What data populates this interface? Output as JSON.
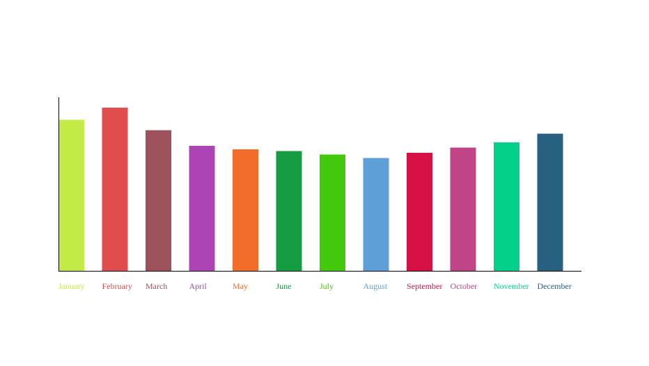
{
  "chart_data": {
    "type": "bar",
    "title": "",
    "xlabel": "",
    "ylabel": "",
    "categories": [
      "January",
      "February",
      "March",
      "April",
      "May",
      "June",
      "July",
      "August",
      "September",
      "October",
      "November",
      "December"
    ],
    "values": [
      87,
      94,
      81,
      72,
      70,
      69,
      67,
      65,
      68,
      71,
      74,
      79
    ],
    "colors": [
      "#c3eb47",
      "#df4e4d",
      "#9d525b",
      "#ac44b5",
      "#f06e2a",
      "#169c40",
      "#43c90c",
      "#5f9fd8",
      "#d61244",
      "#bf4586",
      "#03d18a",
      "#286080"
    ],
    "ylim": [
      0,
      100
    ],
    "grid": false,
    "legend": "none"
  }
}
